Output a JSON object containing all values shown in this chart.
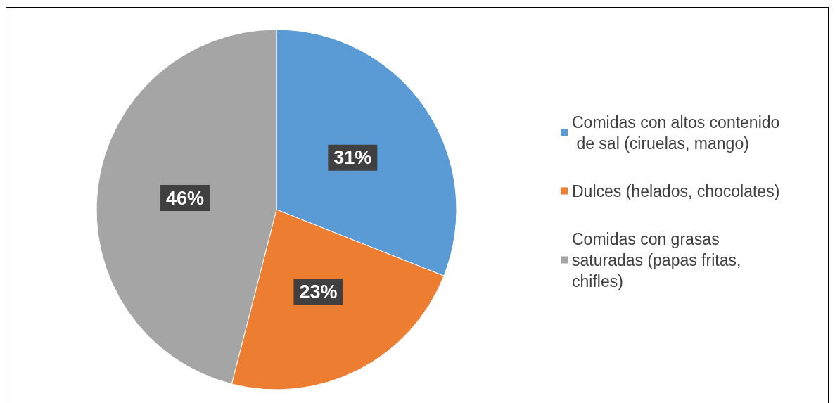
{
  "chart_data": {
    "type": "pie",
    "categories": [
      "Comidas con altos contenido de sal (ciruelas, mango)",
      "Dulces (helados, chocolates)",
      "Comidas con grasas saturadas (papas fritas, chifles)"
    ],
    "values": [
      31,
      23,
      46
    ],
    "colors": [
      "#5b9bd5",
      "#ed7d31",
      "#a5a5a5"
    ],
    "value_labels": [
      "31%",
      "23%",
      "46%"
    ],
    "legend": "right"
  }
}
